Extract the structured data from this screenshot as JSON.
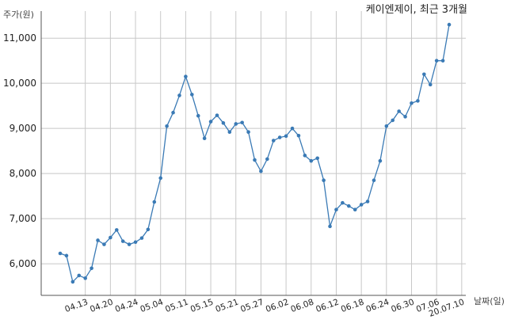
{
  "chart_data": {
    "type": "line",
    "title": "케이엔제이, 최근 3개월",
    "ylabel": "주가(원)",
    "xlabel": "날짜(일)",
    "ylim": [
      5300,
      11600
    ],
    "y_ticks": [
      6000,
      7000,
      8000,
      9000,
      10000,
      11000
    ],
    "y_tick_labels": [
      "6,000",
      "7,000",
      "8,000",
      "9,000",
      "10,000",
      "11,000"
    ],
    "x_tick_labels": [
      "04.13",
      "04.20",
      "04.24",
      "05.04",
      "05.11",
      "05.15",
      "05.21",
      "05.27",
      "06.02",
      "06.08",
      "06.12",
      "06.18",
      "06.24",
      "06.30",
      "07.06",
      "20.07.10"
    ],
    "x_tick_index": [
      4,
      8,
      12,
      16,
      20,
      24,
      28,
      32,
      36,
      40,
      44,
      48,
      52,
      56,
      60,
      64
    ],
    "grid": true,
    "line_color": "#3a7ab5",
    "series": [
      {
        "values": [
          6230,
          6180,
          5600,
          5740,
          5680,
          5900,
          6520,
          6430,
          6580,
          6750,
          6500,
          6430,
          6480,
          6570,
          6760,
          7370,
          7900,
          9050,
          9350,
          9730,
          10150,
          9750,
          9280,
          8780,
          9150,
          9290,
          9120,
          8920,
          9100,
          9130,
          8920,
          8300,
          8050,
          8320,
          8730,
          8800,
          8830,
          9000,
          8840,
          8400,
          8280,
          8340,
          7850,
          6830,
          7200,
          7350,
          7280,
          7200,
          7310,
          7380,
          7850,
          8280,
          9050,
          9180,
          9380,
          9260,
          9560,
          9610,
          10200,
          9970,
          10500,
          10500,
          11300
        ]
      }
    ]
  }
}
